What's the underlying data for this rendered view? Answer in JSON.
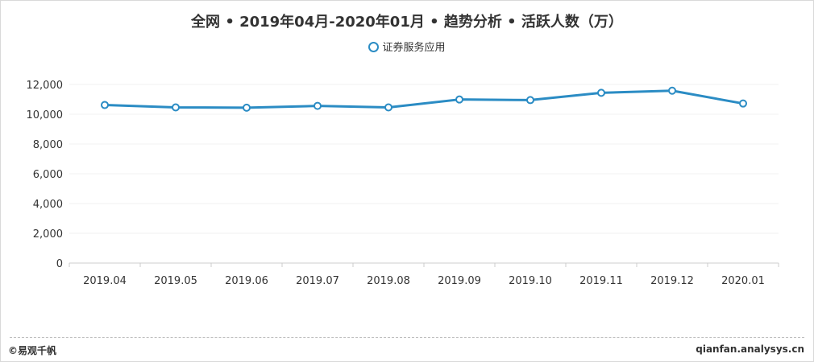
{
  "chart_data": {
    "type": "line",
    "title": "全网 • 2019年04月-2020年01月 • 趋势分析 • 活跃人数（万）",
    "xlabel": "",
    "ylabel": "",
    "categories": [
      "2019.04",
      "2019.05",
      "2019.06",
      "2019.07",
      "2019.08",
      "2019.09",
      "2019.10",
      "2019.11",
      "2019.12",
      "2020.01"
    ],
    "series": [
      {
        "name": "证券服务应用",
        "values": [
          10620,
          10460,
          10440,
          10560,
          10460,
          10990,
          10950,
          11440,
          11580,
          10720
        ]
      }
    ],
    "ylim": [
      0,
      12000
    ],
    "yticks": [
      0,
      2000,
      4000,
      6000,
      8000,
      10000,
      12000
    ],
    "ytick_labels": [
      "0",
      "2,000",
      "4,000",
      "6,000",
      "8,000",
      "10,000",
      "12,000"
    ],
    "grid": true,
    "legend_position": "top-center",
    "line_color": "#2b8cc4"
  },
  "footer": {
    "copyright": "©易观千帆",
    "site": "qianfan.analysys.cn"
  }
}
